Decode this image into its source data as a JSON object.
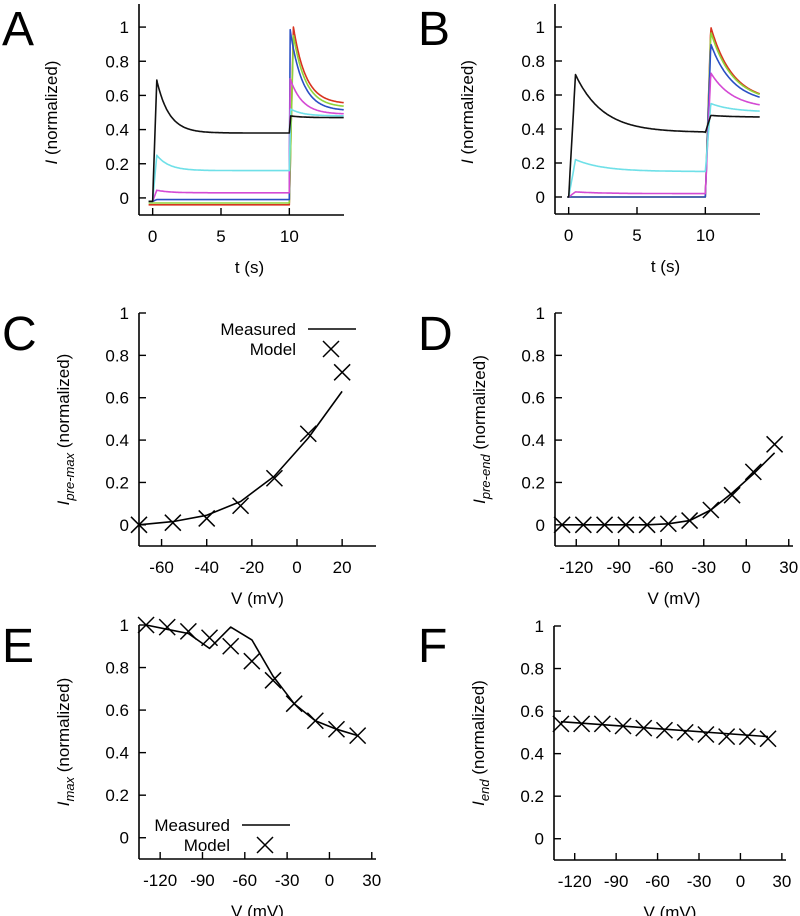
{
  "chart_data": [
    {
      "panel": "A",
      "type": "line",
      "title": "",
      "xlabel": "t (s)",
      "ylabel_main": "I",
      "ylabel_sub": "",
      "ylabel_suffix": " (normalized)",
      "xlim": [
        -1,
        14
      ],
      "ylim": [
        -0.1,
        1.1
      ],
      "xticks": [
        0,
        5,
        10
      ],
      "yticks": [
        0,
        0.2,
        0.4,
        0.6,
        0.8,
        1
      ],
      "ytick_labels": [
        "0",
        "0.2",
        "0.4",
        "0.6",
        "0.8",
        "1"
      ],
      "series": [
        {
          "name": "trace-red",
          "color": "#d8331f",
          "pre": -0.04,
          "pre_peak": -0.04,
          "post_peak": 1.0,
          "post_end": 0.55,
          "post_peak_t": 10.3
        },
        {
          "name": "trace-green",
          "color": "#8fd43a",
          "pre": -0.03,
          "pre_peak": -0.03,
          "post_peak": 0.95,
          "post_end": 0.53,
          "post_peak_t": 10.3
        },
        {
          "name": "trace-blue",
          "color": "#2a4fc4",
          "pre": -0.01,
          "pre_peak": -0.01,
          "post_peak": 0.99,
          "post_end": 0.51,
          "post_peak_t": 10.05
        },
        {
          "name": "trace-magenta",
          "color": "#d44ad4",
          "pre": 0.03,
          "pre_peak": 0.045,
          "post_peak": 0.7,
          "post_end": 0.49,
          "post_peak_t": 10.05
        },
        {
          "name": "trace-cyan",
          "color": "#6fe0e8",
          "pre": 0.16,
          "pre_peak": 0.25,
          "post_peak": 0.52,
          "post_end": 0.48,
          "post_peak_t": 10.1
        },
        {
          "name": "trace-black",
          "color": "#111111",
          "pre": 0.38,
          "pre_peak": 0.69,
          "post_peak": 0.48,
          "post_end": 0.47,
          "post_peak_t": 10.1
        }
      ]
    },
    {
      "panel": "B",
      "type": "line",
      "title": "",
      "xlabel": "t (s)",
      "ylabel_main": "I",
      "ylabel_sub": "",
      "ylabel_suffix": " (normalized)",
      "xlim": [
        -1,
        14
      ],
      "ylim": [
        -0.1,
        1.1
      ],
      "xticks": [
        0,
        5,
        10
      ],
      "yticks": [
        0,
        0.2,
        0.4,
        0.6,
        0.8,
        1
      ],
      "ytick_labels": [
        "0",
        "0.2",
        "0.4",
        "0.6",
        "0.8",
        "1"
      ],
      "series": [
        {
          "name": "trace-red",
          "color": "#d8331f",
          "pre": 0.0,
          "pre_peak": 0.0,
          "post_peak": 1.0,
          "post_end": 0.56,
          "post_peak_t": 10.4
        },
        {
          "name": "trace-green",
          "color": "#8fd43a",
          "pre": 0.0,
          "pre_peak": 0.0,
          "post_peak": 0.97,
          "post_end": 0.56,
          "post_peak_t": 10.4
        },
        {
          "name": "trace-blue",
          "color": "#2a4fc4",
          "pre": 0.0,
          "pre_peak": 0.0,
          "post_peak": 0.9,
          "post_end": 0.55,
          "post_peak_t": 10.4
        },
        {
          "name": "trace-magenta",
          "color": "#d44ad4",
          "pre": 0.02,
          "pre_peak": 0.03,
          "post_peak": 0.73,
          "post_end": 0.52,
          "post_peak_t": 10.4
        },
        {
          "name": "trace-cyan",
          "color": "#6fe0e8",
          "pre": 0.15,
          "pre_peak": 0.22,
          "post_peak": 0.55,
          "post_end": 0.5,
          "post_peak_t": 10.4
        },
        {
          "name": "trace-black",
          "color": "#111111",
          "pre": 0.38,
          "pre_peak": 0.72,
          "post_peak": 0.48,
          "post_end": 0.47,
          "post_peak_t": 10.4
        }
      ]
    },
    {
      "panel": "C",
      "type": "line",
      "title": "",
      "xlabel": "V (mV)",
      "ylabel_main": "I",
      "ylabel_sub": "pre-max",
      "ylabel_suffix": " (normalized)",
      "xlim": [
        -70,
        35
      ],
      "ylim": [
        -0.1,
        1.0
      ],
      "xticks": [
        -60,
        -40,
        -20,
        0,
        20
      ],
      "yticks": [
        0,
        0.2,
        0.4,
        0.6,
        0.8,
        1
      ],
      "ytick_labels": [
        "0",
        "0.2",
        "0.4",
        "0.6",
        "0.8",
        "1"
      ],
      "legend": {
        "position": "top-right",
        "entries": [
          "Measured",
          "Model"
        ]
      },
      "measured": {
        "x": [
          -70,
          -55,
          -40,
          -25,
          -10,
          5,
          20
        ],
        "y": [
          0.0,
          0.015,
          0.045,
          0.11,
          0.23,
          0.41,
          0.63
        ]
      },
      "model": {
        "x": [
          -70,
          -55,
          -40,
          -25,
          -10,
          5,
          20
        ],
        "y": [
          0.0,
          0.01,
          0.03,
          0.09,
          0.22,
          0.43,
          0.72
        ]
      }
    },
    {
      "panel": "D",
      "type": "line",
      "title": "",
      "xlabel": "V (mV)",
      "ylabel_main": "I",
      "ylabel_sub": "pre-end",
      "ylabel_suffix": " (normalized)",
      "xlim": [
        -135,
        33
      ],
      "ylim": [
        -0.1,
        1.0
      ],
      "xticks": [
        -120,
        -90,
        -60,
        -30,
        0,
        30
      ],
      "yticks": [
        0,
        0.2,
        0.4,
        0.6,
        0.8,
        1
      ],
      "ytick_labels": [
        "0",
        "0.2",
        "0.4",
        "0.6",
        "0.8",
        "1"
      ],
      "measured": {
        "x": [
          -130,
          -115,
          -100,
          -85,
          -70,
          -55,
          -40,
          -25,
          -10,
          5,
          20
        ],
        "y": [
          0.0,
          0.0,
          0.0,
          0.0,
          0.0,
          0.005,
          0.02,
          0.07,
          0.15,
          0.24,
          0.34
        ]
      },
      "model": {
        "x": [
          -130,
          -115,
          -100,
          -85,
          -70,
          -55,
          -40,
          -25,
          -10,
          5,
          20
        ],
        "y": [
          0.0,
          0.0,
          0.0,
          0.0,
          0.0,
          0.005,
          0.02,
          0.07,
          0.14,
          0.25,
          0.38
        ]
      }
    },
    {
      "panel": "E",
      "type": "line",
      "title": "",
      "xlabel": "V (mV)",
      "ylabel_main": "I",
      "ylabel_sub": "max",
      "ylabel_suffix": " (normalized)",
      "xlim": [
        -135,
        33
      ],
      "ylim": [
        -0.1,
        1.0
      ],
      "xticks": [
        -120,
        -90,
        -60,
        -30,
        0,
        30
      ],
      "yticks": [
        0,
        0.2,
        0.4,
        0.6,
        0.8,
        1
      ],
      "ytick_labels": [
        "0",
        "0.2",
        "0.4",
        "0.6",
        "0.8",
        "1"
      ],
      "legend": {
        "position": "bottom-left",
        "entries": [
          "Measured",
          "Model"
        ]
      },
      "measured": {
        "x": [
          -130,
          -115,
          -100,
          -85,
          -70,
          -55,
          -40,
          -25,
          -10,
          5,
          20
        ],
        "y": [
          1.0,
          0.98,
          0.96,
          0.89,
          0.99,
          0.93,
          0.76,
          0.63,
          0.55,
          0.51,
          0.48
        ]
      },
      "model": {
        "x": [
          -130,
          -115,
          -100,
          -85,
          -70,
          -55,
          -40,
          -25,
          -10,
          5,
          20
        ],
        "y": [
          1.0,
          0.99,
          0.97,
          0.94,
          0.9,
          0.83,
          0.74,
          0.63,
          0.55,
          0.51,
          0.48
        ]
      }
    },
    {
      "panel": "F",
      "type": "line",
      "title": "",
      "xlabel": "V (mV)",
      "ylabel_main": "I",
      "ylabel_sub": "end",
      "ylabel_suffix": " (normalized)",
      "xlim": [
        -135,
        33
      ],
      "ylim": [
        -0.1,
        1.0
      ],
      "xticks": [
        -120,
        -90,
        -60,
        -30,
        0,
        30
      ],
      "yticks": [
        0,
        0.2,
        0.4,
        0.6,
        0.8,
        1
      ],
      "ytick_labels": [
        "0",
        "0.2",
        "0.4",
        "0.6",
        "0.8",
        "1"
      ],
      "measured": {
        "x": [
          -130,
          20
        ],
        "y": [
          0.55,
          0.48
        ]
      },
      "model": {
        "x": [
          -130,
          -115,
          -100,
          -85,
          -70,
          -55,
          -40,
          -25,
          -10,
          5,
          20
        ],
        "y": [
          0.54,
          0.54,
          0.54,
          0.53,
          0.52,
          0.51,
          0.5,
          0.49,
          0.48,
          0.48,
          0.47
        ]
      }
    }
  ]
}
